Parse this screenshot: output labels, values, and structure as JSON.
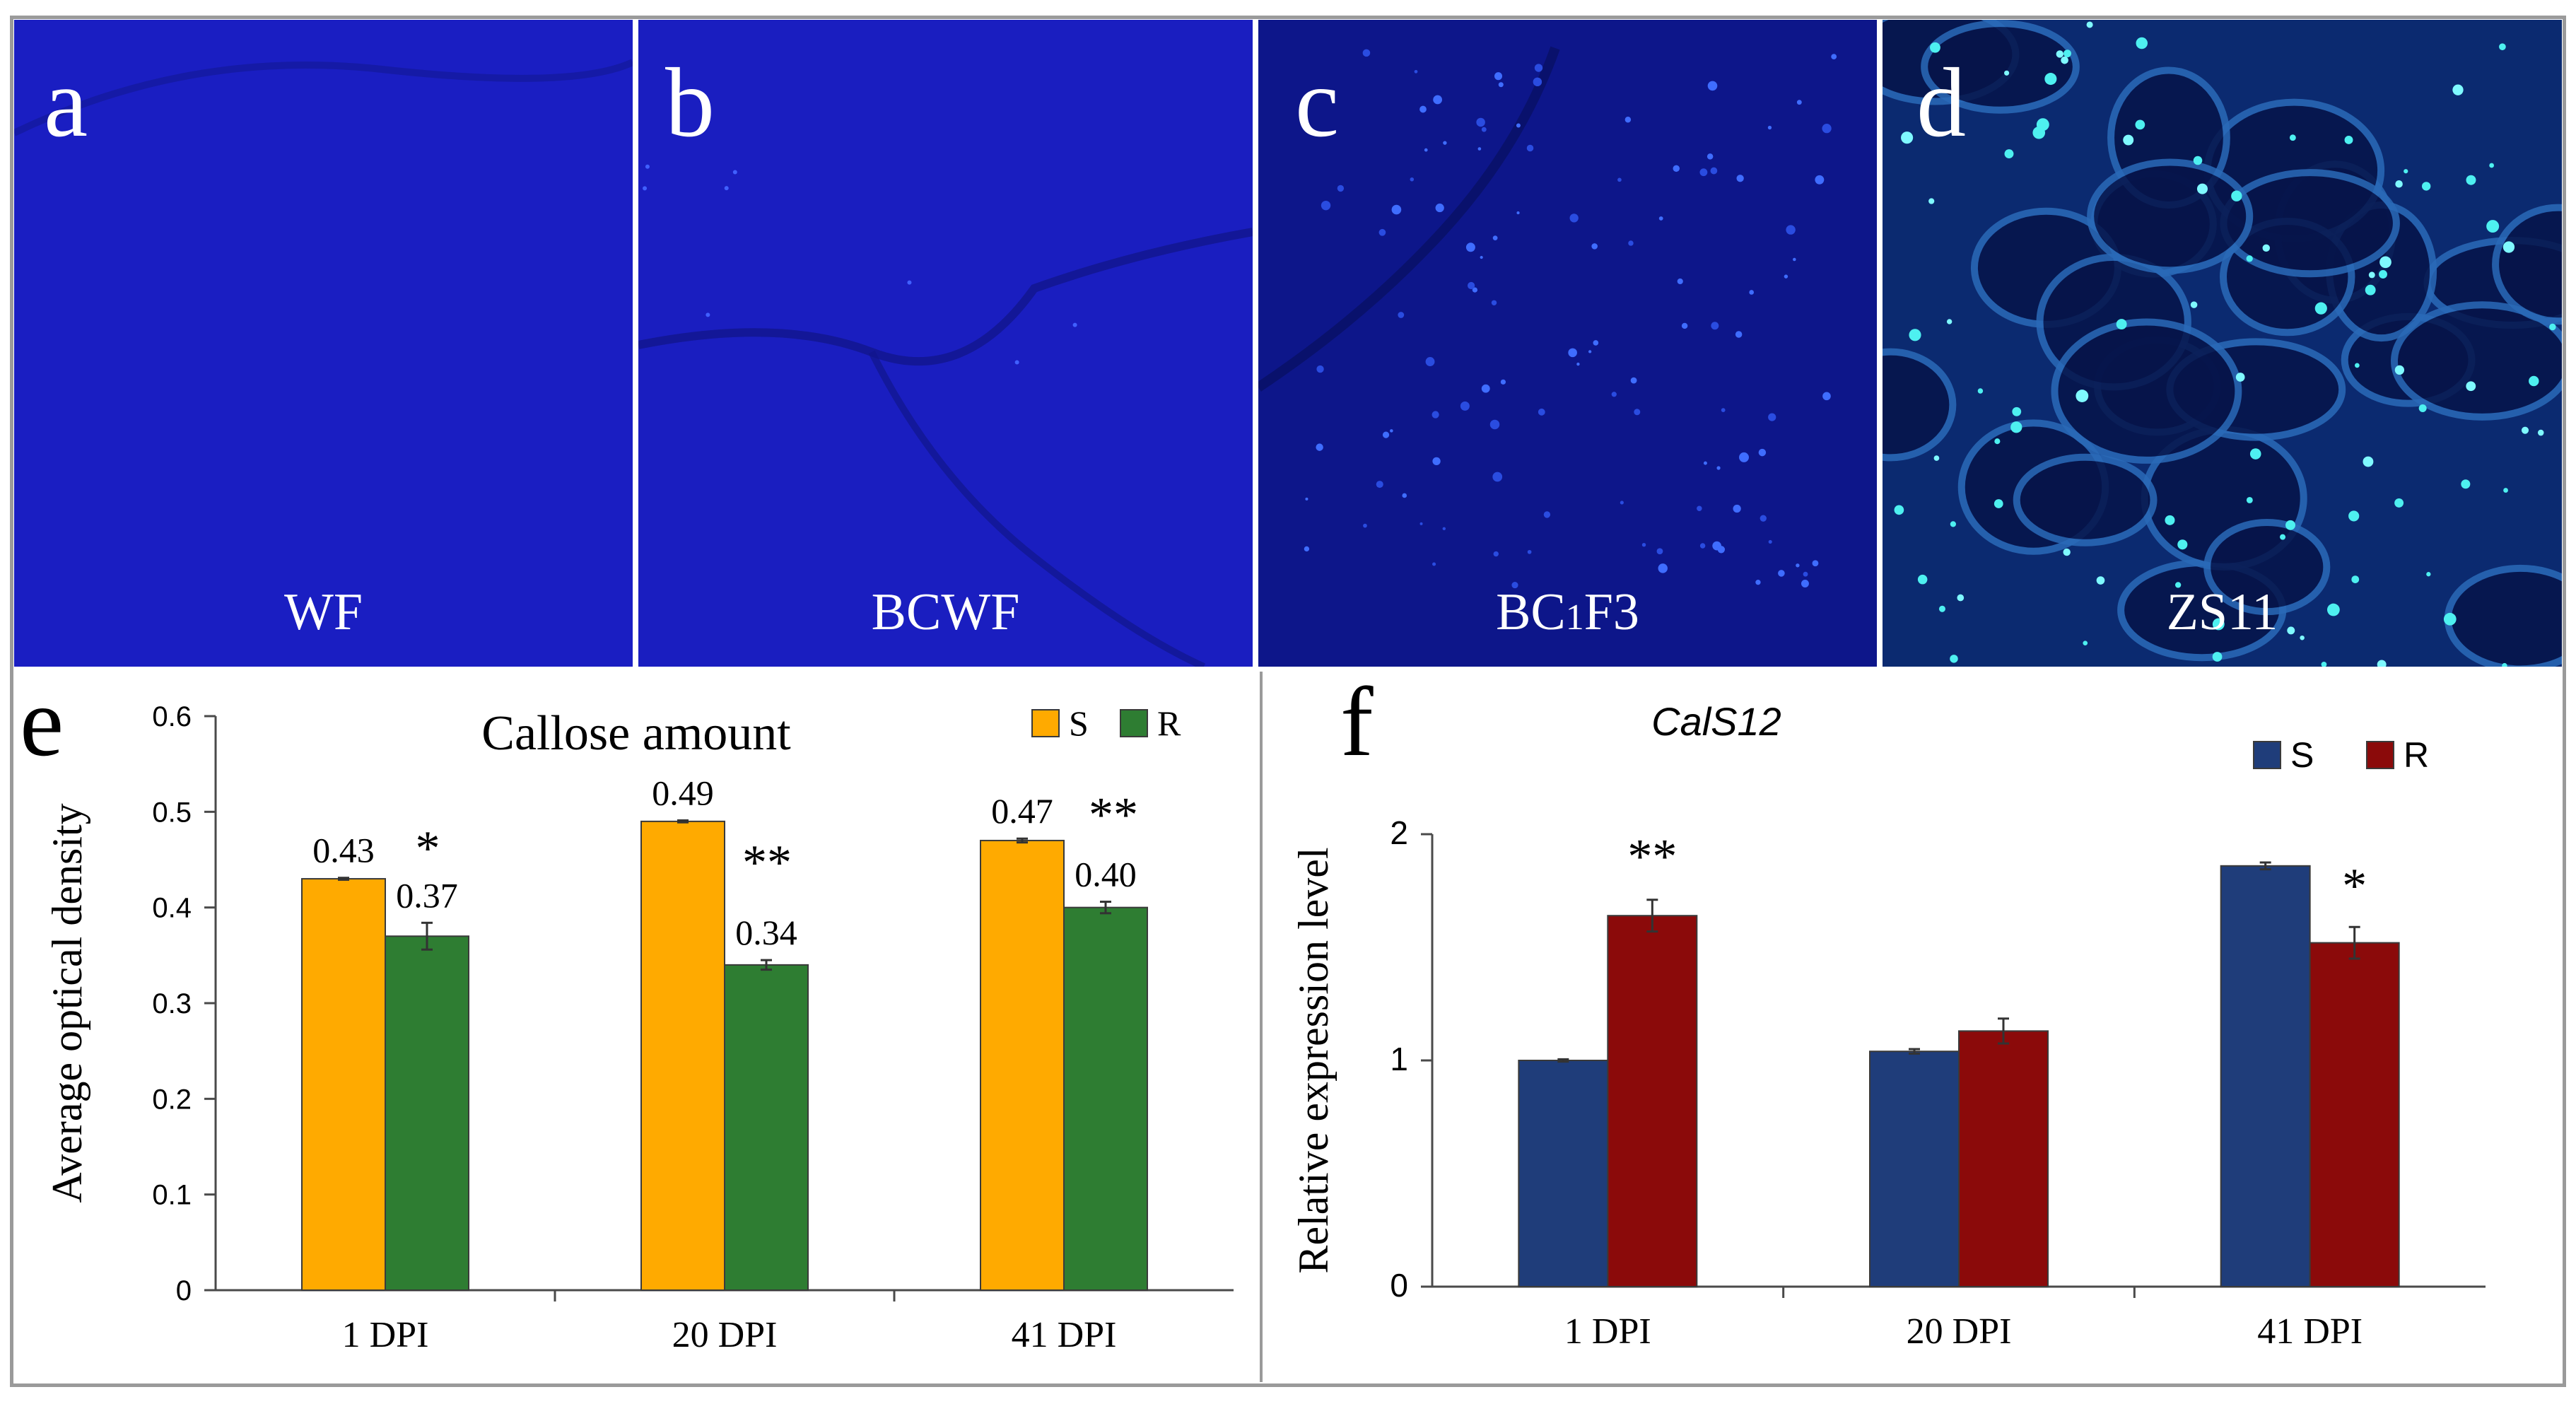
{
  "micrographs": [
    {
      "letter": "a",
      "label": "WF",
      "bg": "#1a1ec2",
      "spots": "none"
    },
    {
      "letter": "b",
      "label": "BCWF",
      "bg": "#1a1ec0",
      "spots": "few"
    },
    {
      "letter": "c",
      "label": "BC1F3",
      "label_main": "BC",
      "label_sub": "1",
      "label_tail": "F3",
      "bg": "#0d168a",
      "spots": "many"
    },
    {
      "letter": "d",
      "label": "ZS11",
      "bg": "#0b2a70",
      "spots": "cyan"
    }
  ],
  "chart_data": [
    {
      "panel": "e",
      "type": "bar",
      "title": "Callose amount",
      "xlabel": "",
      "ylabel": "Average optical density",
      "categories": [
        "1 DPI",
        "20 DPI",
        "41 DPI"
      ],
      "series": [
        {
          "name": "S",
          "color": "#ffaa00",
          "values": [
            0.43,
            0.49,
            0.47
          ],
          "errors": [
            0.001,
            0.001,
            0.002
          ],
          "labels": [
            "0.43",
            "0.49",
            "0.47"
          ]
        },
        {
          "name": "R",
          "color": "#2e7d32",
          "values": [
            0.37,
            0.34,
            0.4
          ],
          "errors": [
            0.014,
            0.005,
            0.006
          ],
          "labels": [
            "0.37",
            "0.34",
            "0.40"
          ]
        }
      ],
      "significance": [
        "*",
        "**",
        "**"
      ],
      "ylim": [
        0,
        0.6
      ],
      "yticks": [
        "0",
        "0.1",
        "0.2",
        "0.3",
        "0.4",
        "0.5",
        "0.6"
      ],
      "legend": "top-right"
    },
    {
      "panel": "f",
      "type": "bar",
      "title": "CalS12",
      "xlabel": "",
      "ylabel": "Relative expression level",
      "categories": [
        "1 DPI",
        "20 DPI",
        "41 DPI"
      ],
      "series": [
        {
          "name": "S",
          "color": "#1f3d7a",
          "values": [
            1.0,
            1.04,
            1.86
          ],
          "errors": [
            0.005,
            0.01,
            0.015
          ]
        },
        {
          "name": "R",
          "color": "#8b0a0a",
          "values": [
            1.64,
            1.13,
            1.52
          ],
          "errors": [
            0.07,
            0.055,
            0.07
          ]
        }
      ],
      "significance": [
        "**",
        "",
        "*"
      ],
      "ylim": [
        0,
        2
      ],
      "yticks": [
        "0",
        "1",
        "2"
      ],
      "legend": "top-right"
    }
  ]
}
